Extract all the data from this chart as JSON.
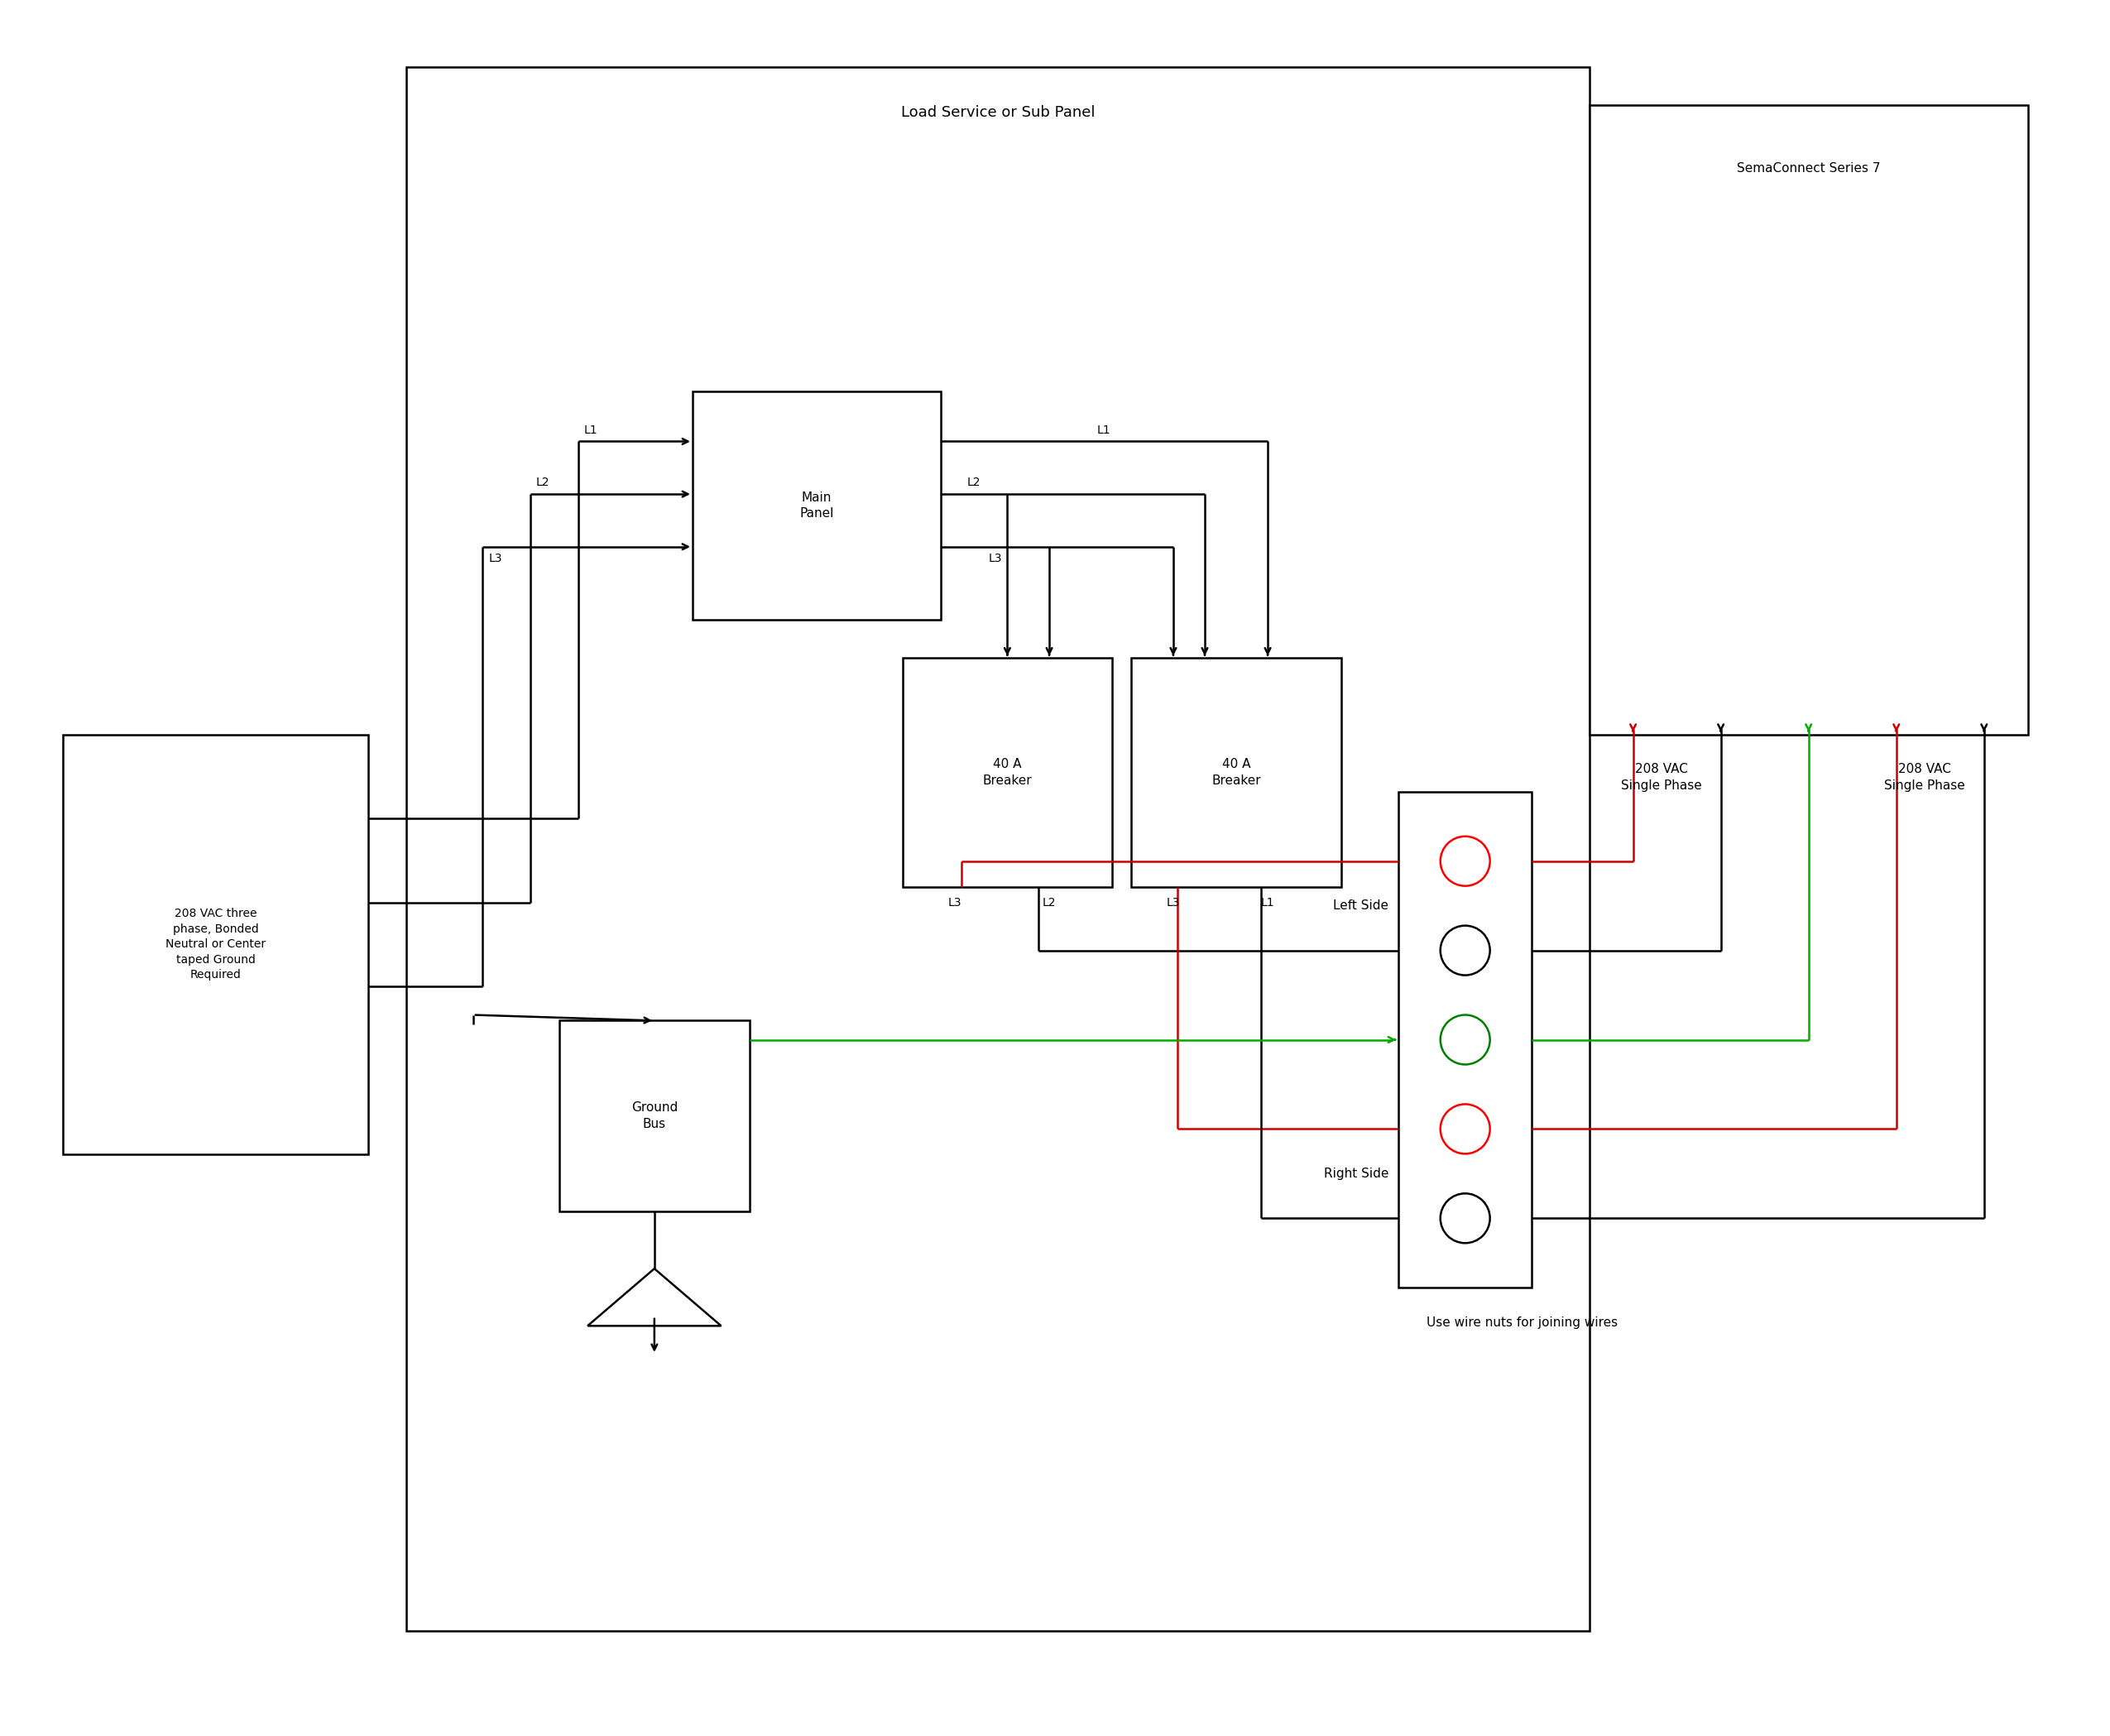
{
  "background_color": "#ffffff",
  "fig_width": 25.5,
  "fig_height": 20.98,
  "load_panel_label": "Load Service or Sub Panel",
  "sema_label": "SemaConnect Series 7",
  "source_label": "208 VAC three\nphase, Bonded\nNeutral or Center\ntaped Ground\nRequired",
  "main_panel_label": "Main\nPanel",
  "breaker1_label": "40 A\nBreaker",
  "breaker2_label": "40 A\nBreaker",
  "ground_bus_label": "Ground\nBus",
  "text_left_side": "Left Side",
  "text_right_side": "Right Side",
  "text_208_left": "208 VAC\nSingle Phase",
  "text_208_right": "208 VAC\nSingle Phase",
  "text_wire_nuts": "Use wire nuts for joining wires",
  "line_color": "#000000",
  "red_color": "#cc0000",
  "green_color": "#00aa00"
}
